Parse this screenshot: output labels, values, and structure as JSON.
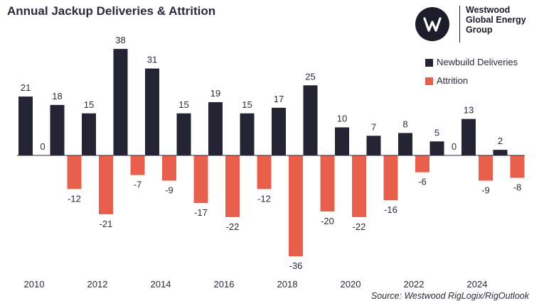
{
  "title": "Annual Jackup Deliveries & Attrition",
  "logo": {
    "icon": "westwood-w-logo",
    "line1": "Westwood",
    "line2": "Global Energy",
    "line3": "Group"
  },
  "source": "Source: Westwood RigLogix/RigOutlook",
  "colors": {
    "newbuild": "#252434",
    "attrition": "#e8604c",
    "axis": "#2b2a3a"
  },
  "chart_data": {
    "type": "bar",
    "title": "Annual Jackup Deliveries & Attrition",
    "categories": [
      "2010",
      "2011",
      "2012",
      "2013",
      "2014",
      "2015",
      "2016",
      "2017",
      "2018",
      "2019",
      "2020",
      "2021",
      "2022",
      "2023",
      "2024",
      "2025"
    ],
    "tick_labels": [
      "2010",
      "2012",
      "2014",
      "2016",
      "2018",
      "2020",
      "2022",
      "2024"
    ],
    "series": [
      {
        "name": "Newbuild Deliveries",
        "values": [
          21,
          18,
          15,
          38,
          31,
          15,
          19,
          15,
          17,
          25,
          10,
          7,
          8,
          5,
          13,
          2
        ]
      },
      {
        "name": "Attrition",
        "values": [
          0,
          -12,
          -21,
          -7,
          -9,
          -17,
          -22,
          -12,
          -36,
          -20,
          -22,
          -16,
          -6,
          0,
          -9,
          -8
        ]
      }
    ],
    "ylim": [
      -40,
      40
    ],
    "grid": false,
    "legend": "top-right"
  }
}
